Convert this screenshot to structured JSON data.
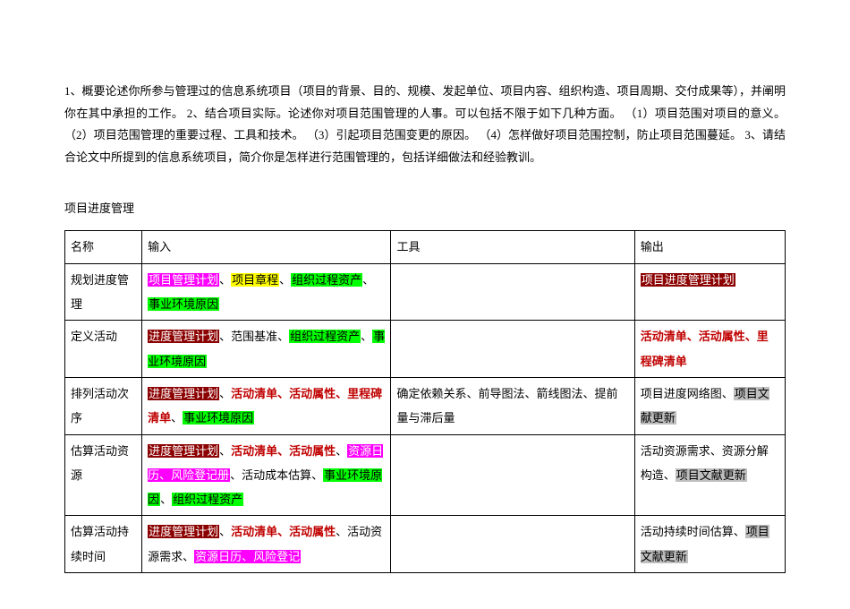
{
  "intro": "1、概要论述你所参与管理过的信息系统项目（项目的背景、目的、规模、发起单位、项目内容、组织构造、项目周期、交付成果等），并阐明你在其中承担的工作。 2、结合项目实际。论述你对项目范围管理的人事。可以包括不限于如下几种方面。 （1）项目范围对项目的意义。 （2）项目范围管理的重要过程、工具和技术。 （3）引起项目范围变更的原因。 （4）怎样做好项目范围控制，防止项目范围蔓延。 3、请结合论文中所提到的信息系统项目，简介你是怎样进行范围管理的，包括详细做法和经验教训。",
  "section_title": "项目进度管理",
  "headers": {
    "c1": "名称",
    "c2": "输入",
    "c3": "工具",
    "c4": "输出"
  },
  "colors": {
    "magenta": "#ff00ff",
    "yellow": "#ffff00",
    "green": "#00ff00",
    "darkred": "#8b0000",
    "red_text": "#c00000",
    "gray_bg": "#bfbfbf"
  },
  "rows": [
    {
      "name": "规划进度管理",
      "input": [
        {
          "t": "项目管理计划",
          "bg": "#ff00ff",
          "fg": "#ffffff"
        },
        {
          "t": "、",
          "plain": true
        },
        {
          "t": "项目章程",
          "bg": "#ffff00",
          "fg": "#000000"
        },
        {
          "t": "、",
          "plain": true
        },
        {
          "t": "组织过程资产",
          "bg": "#00ff00",
          "fg": "#000000"
        },
        {
          "t": "、",
          "plain": true
        },
        {
          "t": "事业环境原因",
          "bg": "#00ff00",
          "fg": "#000000"
        }
      ],
      "tool": [],
      "output": [
        {
          "t": "项目进度管理计划",
          "bg": "#8b0000",
          "fg": "#ffffff"
        }
      ]
    },
    {
      "name": "定义活动",
      "input": [
        {
          "t": "进度管理计划",
          "bg": "#8b0000",
          "fg": "#ffffff"
        },
        {
          "t": "、范围基准、",
          "plain": true
        },
        {
          "t": "组织过程资产",
          "bg": "#00ff00",
          "fg": "#000000"
        },
        {
          "t": "、",
          "plain": true
        },
        {
          "t": "事业环境原因",
          "bg": "#00ff00",
          "fg": "#000000"
        }
      ],
      "tool": [],
      "output": [
        {
          "t": "活动清单、活动属性、里程碑清单",
          "bold_red": true
        }
      ]
    },
    {
      "name": "排列活动次序",
      "input": [
        {
          "t": "进度管理计划",
          "bg": "#8b0000",
          "fg": "#ffffff"
        },
        {
          "t": "、",
          "plain": true
        },
        {
          "t": "活动清单、活动属性、里程碑清单",
          "bold_red": true
        },
        {
          "t": "、",
          "plain": true
        },
        {
          "t": "事业环境原因",
          "bg": "#00ff00",
          "fg": "#000000"
        }
      ],
      "tool": [
        {
          "t": "确定依赖关系、前导图法、箭线图法、提前量与滞后量",
          "plain": true
        }
      ],
      "output": [
        {
          "t": "项目进度网络图、",
          "plain": true
        },
        {
          "t": "项目文献更新",
          "bg": "#bfbfbf",
          "fg": "#000000"
        }
      ]
    },
    {
      "name": "估算活动资源",
      "input": [
        {
          "t": "进度管理计划",
          "bg": "#8b0000",
          "fg": "#ffffff"
        },
        {
          "t": "、",
          "plain": true
        },
        {
          "t": "活动清单、活动属性",
          "bold_red": true
        },
        {
          "t": "、",
          "plain": true
        },
        {
          "t": "资源日历、风险登记册",
          "bg": "#ff00ff",
          "fg": "#ffffff"
        },
        {
          "t": "、活动成本估算、",
          "plain": true
        },
        {
          "t": "事业环境原因",
          "bg": "#00ff00",
          "fg": "#000000"
        },
        {
          "t": "、",
          "plain": true
        },
        {
          "t": "组织过程资产",
          "bg": "#00ff00",
          "fg": "#000000"
        }
      ],
      "tool": [],
      "output": [
        {
          "t": "活动资源需求、资源分解构造、",
          "plain": true
        },
        {
          "t": "项目文献更新",
          "bg": "#bfbfbf",
          "fg": "#000000"
        }
      ]
    },
    {
      "name": "估算活动持续时间",
      "input": [
        {
          "t": "进度管理计划",
          "bg": "#8b0000",
          "fg": "#ffffff"
        },
        {
          "t": "、",
          "plain": true
        },
        {
          "t": "活动清单、活动属性",
          "bold_red": true
        },
        {
          "t": "、活动资源需求、",
          "plain": true
        },
        {
          "t": "资源日历、风险登记",
          "bg": "#ff00ff",
          "fg": "#ffffff"
        }
      ],
      "tool": [],
      "output": [
        {
          "t": "活动持续时间估算、",
          "plain": true
        },
        {
          "t": "项目文献更新",
          "bg": "#bfbfbf",
          "fg": "#000000"
        }
      ]
    }
  ]
}
